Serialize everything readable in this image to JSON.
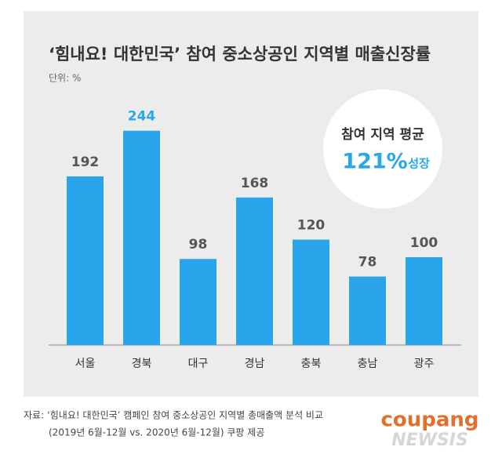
{
  "chart_data": {
    "type": "bar",
    "title": "‘힘내요! 대한민국’ 참여 중소상공인 지역별 매출신장률",
    "subtitle": "단위: %",
    "categories": [
      "서울",
      "경북",
      "대구",
      "경남",
      "충북",
      "충남",
      "광주"
    ],
    "values": [
      192,
      244,
      98,
      168,
      120,
      78,
      100
    ],
    "color": "#2aa5ec",
    "value_label_colors": [
      "#555555",
      "#29a8e8",
      "#555555",
      "#555555",
      "#555555",
      "#555555",
      "#555555"
    ],
    "badge": {
      "line1": "참여 지역 평균",
      "value": "121%",
      "suffix": "성장"
    },
    "source": [
      "자료: ‘힘내요! 대한민국’ 캠페인 참여 중소상공인 지역별 총매출액 분석 비교",
      "(2019년 6월-12월 vs. 2020년 6월-12월) 쿠팡 제공"
    ],
    "logo": "coupang",
    "watermark": "NEWSIS"
  }
}
